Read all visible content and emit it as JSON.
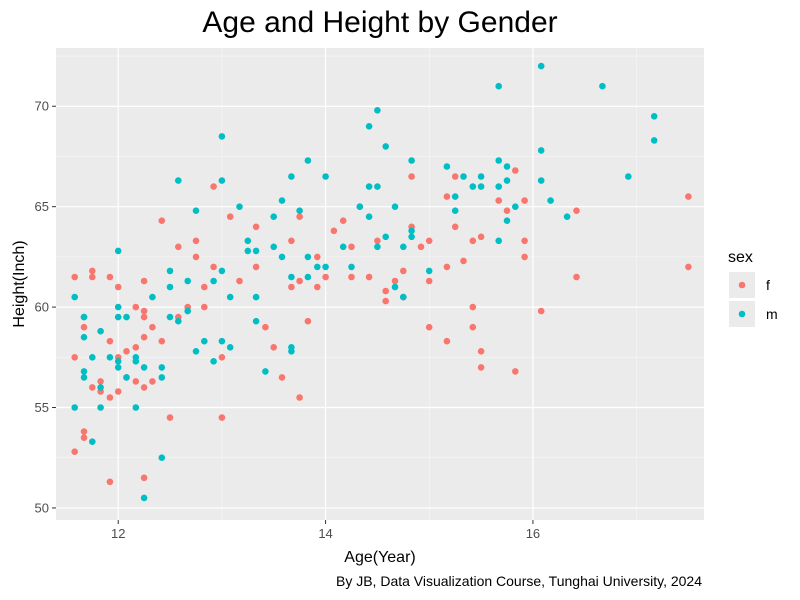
{
  "title": "Age and Height by Gender",
  "caption": "By JB, Data Visualization Course, Tunghai University, 2024",
  "colors": {
    "f": "#F8766D",
    "m": "#00BFC4",
    "panel": "#EBEBEB",
    "grid_major": "#FFFFFF",
    "grid_minor": "#F7F7F7"
  },
  "chart_data": {
    "type": "scatter",
    "title": "Age and Height by Gender",
    "xlabel": "Age(Year)",
    "ylabel": "Height(Inch)",
    "xlim": [
      11.4,
      17.65
    ],
    "ylim": [
      49.4,
      72.9
    ],
    "xticks": [
      12,
      14,
      16
    ],
    "yticks": [
      50,
      55,
      60,
      65,
      70
    ],
    "grid": true,
    "legend": {
      "title": "sex",
      "position": "right",
      "entries": [
        "f",
        "m"
      ]
    },
    "series": [
      {
        "name": "f",
        "color": "#F8766D",
        "points": [
          [
            11.58,
            61.5
          ],
          [
            11.58,
            57.5
          ],
          [
            11.58,
            52.8
          ],
          [
            11.67,
            53.5
          ],
          [
            11.67,
            53.8
          ],
          [
            11.67,
            59.0
          ],
          [
            11.67,
            59.5
          ],
          [
            11.75,
            61.8
          ],
          [
            11.75,
            61.5
          ],
          [
            11.75,
            56.0
          ],
          [
            11.83,
            56.3
          ],
          [
            11.83,
            55.8
          ],
          [
            11.92,
            58.3
          ],
          [
            11.92,
            55.5
          ],
          [
            11.92,
            61.5
          ],
          [
            11.92,
            51.3
          ],
          [
            12.0,
            61.0
          ],
          [
            12.0,
            57.5
          ],
          [
            12.0,
            55.8
          ],
          [
            12.08,
            57.8
          ],
          [
            12.08,
            56.5
          ],
          [
            12.17,
            58.0
          ],
          [
            12.17,
            60.0
          ],
          [
            12.17,
            56.3
          ],
          [
            12.25,
            61.3
          ],
          [
            12.25,
            59.8
          ],
          [
            12.25,
            59.5
          ],
          [
            12.25,
            58.5
          ],
          [
            12.25,
            56.0
          ],
          [
            12.25,
            51.5
          ],
          [
            12.33,
            59.0
          ],
          [
            12.33,
            56.3
          ],
          [
            12.42,
            64.3
          ],
          [
            12.42,
            58.3
          ],
          [
            12.5,
            54.5
          ],
          [
            12.58,
            63.0
          ],
          [
            12.58,
            59.5
          ],
          [
            12.67,
            60.0
          ],
          [
            12.75,
            63.3
          ],
          [
            12.75,
            62.5
          ],
          [
            12.83,
            60.0
          ],
          [
            12.83,
            61.0
          ],
          [
            12.92,
            62.0
          ],
          [
            12.92,
            66.0
          ],
          [
            13.0,
            57.5
          ],
          [
            13.0,
            54.5
          ],
          [
            13.08,
            64.5
          ],
          [
            13.17,
            61.3
          ],
          [
            13.33,
            64.0
          ],
          [
            13.33,
            62.0
          ],
          [
            13.42,
            59.0
          ],
          [
            13.5,
            58.0
          ],
          [
            13.58,
            56.5
          ],
          [
            13.67,
            63.3
          ],
          [
            13.67,
            61.0
          ],
          [
            13.75,
            64.5
          ],
          [
            13.75,
            55.5
          ],
          [
            13.75,
            61.3
          ],
          [
            13.83,
            59.3
          ],
          [
            13.92,
            62.5
          ],
          [
            13.92,
            61.0
          ],
          [
            14.0,
            61.5
          ],
          [
            14.08,
            63.8
          ],
          [
            14.17,
            64.3
          ],
          [
            14.25,
            63.0
          ],
          [
            14.25,
            61.5
          ],
          [
            14.33,
            65.0
          ],
          [
            14.42,
            61.5
          ],
          [
            14.5,
            63.3
          ],
          [
            14.58,
            60.8
          ],
          [
            14.58,
            60.3
          ],
          [
            14.67,
            61.3
          ],
          [
            14.75,
            61.8
          ],
          [
            14.75,
            60.5
          ],
          [
            14.83,
            66.5
          ],
          [
            14.83,
            64.0
          ],
          [
            14.92,
            63.0
          ],
          [
            15.0,
            59.0
          ],
          [
            15.0,
            61.3
          ],
          [
            15.0,
            63.3
          ],
          [
            15.17,
            58.3
          ],
          [
            15.17,
            62.0
          ],
          [
            15.17,
            65.5
          ],
          [
            15.25,
            66.5
          ],
          [
            15.25,
            64.0
          ],
          [
            15.33,
            62.3
          ],
          [
            15.42,
            63.3
          ],
          [
            15.42,
            60.0
          ],
          [
            15.42,
            59.0
          ],
          [
            15.5,
            57.8
          ],
          [
            15.5,
            57.0
          ],
          [
            15.5,
            63.5
          ],
          [
            15.67,
            65.3
          ],
          [
            15.75,
            64.8
          ],
          [
            15.83,
            56.8
          ],
          [
            15.83,
            66.8
          ],
          [
            15.92,
            65.3
          ],
          [
            15.92,
            63.3
          ],
          [
            15.92,
            62.5
          ],
          [
            16.08,
            59.8
          ],
          [
            16.42,
            61.5
          ],
          [
            16.42,
            64.8
          ],
          [
            17.5,
            65.5
          ],
          [
            17.5,
            62.0
          ]
        ]
      },
      {
        "name": "m",
        "color": "#00BFC4",
        "points": [
          [
            11.58,
            60.5
          ],
          [
            11.58,
            55.0
          ],
          [
            11.67,
            59.5
          ],
          [
            11.67,
            58.5
          ],
          [
            11.67,
            56.8
          ],
          [
            11.67,
            56.5
          ],
          [
            11.75,
            57.5
          ],
          [
            11.75,
            53.3
          ],
          [
            11.83,
            58.8
          ],
          [
            11.83,
            56.0
          ],
          [
            11.83,
            55.0
          ],
          [
            11.92,
            57.5
          ],
          [
            12.0,
            62.8
          ],
          [
            12.0,
            60.0
          ],
          [
            12.0,
            59.5
          ],
          [
            12.0,
            57.3
          ],
          [
            12.0,
            57.0
          ],
          [
            12.08,
            56.5
          ],
          [
            12.08,
            59.5
          ],
          [
            12.17,
            55.0
          ],
          [
            12.17,
            57.3
          ],
          [
            12.17,
            57.5
          ],
          [
            12.25,
            57.0
          ],
          [
            12.25,
            50.5
          ],
          [
            12.33,
            60.5
          ],
          [
            12.42,
            57.0
          ],
          [
            12.42,
            56.5
          ],
          [
            12.42,
            52.5
          ],
          [
            12.5,
            61.8
          ],
          [
            12.5,
            61.0
          ],
          [
            12.5,
            59.5
          ],
          [
            12.58,
            66.3
          ],
          [
            12.58,
            59.3
          ],
          [
            12.67,
            61.3
          ],
          [
            12.67,
            59.8
          ],
          [
            12.75,
            64.8
          ],
          [
            12.75,
            57.8
          ],
          [
            12.83,
            58.3
          ],
          [
            12.92,
            61.3
          ],
          [
            12.92,
            57.3
          ],
          [
            13.0,
            68.5
          ],
          [
            13.0,
            66.3
          ],
          [
            13.0,
            61.8
          ],
          [
            13.0,
            58.3
          ],
          [
            13.08,
            60.5
          ],
          [
            13.08,
            58.0
          ],
          [
            13.17,
            65.0
          ],
          [
            13.25,
            63.3
          ],
          [
            13.25,
            62.8
          ],
          [
            13.33,
            62.8
          ],
          [
            13.33,
            60.5
          ],
          [
            13.33,
            59.3
          ],
          [
            13.42,
            56.8
          ],
          [
            13.5,
            64.5
          ],
          [
            13.5,
            63.0
          ],
          [
            13.58,
            65.3
          ],
          [
            13.58,
            62.5
          ],
          [
            13.67,
            66.5
          ],
          [
            13.67,
            61.5
          ],
          [
            13.67,
            58.0
          ],
          [
            13.67,
            57.8
          ],
          [
            13.75,
            64.8
          ],
          [
            13.83,
            67.3
          ],
          [
            13.83,
            62.5
          ],
          [
            13.83,
            61.5
          ],
          [
            13.92,
            62.0
          ],
          [
            14.0,
            66.5
          ],
          [
            14.0,
            62.0
          ],
          [
            14.17,
            63.0
          ],
          [
            14.25,
            62.0
          ],
          [
            14.33,
            65.0
          ],
          [
            14.42,
            69.0
          ],
          [
            14.42,
            66.0
          ],
          [
            14.42,
            64.5
          ],
          [
            14.5,
            69.8
          ],
          [
            14.5,
            66.0
          ],
          [
            14.5,
            63.0
          ],
          [
            14.58,
            68.0
          ],
          [
            14.58,
            63.5
          ],
          [
            14.67,
            65.0
          ],
          [
            14.67,
            61.0
          ],
          [
            14.75,
            63.0
          ],
          [
            14.75,
            60.5
          ],
          [
            14.83,
            67.3
          ],
          [
            14.83,
            63.5
          ],
          [
            14.83,
            63.8
          ],
          [
            15.0,
            61.8
          ],
          [
            15.17,
            67.0
          ],
          [
            15.25,
            65.5
          ],
          [
            15.25,
            64.8
          ],
          [
            15.33,
            66.5
          ],
          [
            15.42,
            66.0
          ],
          [
            15.5,
            66.5
          ],
          [
            15.5,
            66.0
          ],
          [
            15.67,
            67.3
          ],
          [
            15.67,
            71.0
          ],
          [
            15.67,
            66.0
          ],
          [
            15.67,
            63.3
          ],
          [
            15.75,
            67.0
          ],
          [
            15.75,
            66.3
          ],
          [
            15.75,
            64.3
          ],
          [
            15.83,
            65.0
          ],
          [
            16.08,
            72.0
          ],
          [
            16.08,
            67.8
          ],
          [
            16.08,
            66.3
          ],
          [
            16.17,
            65.3
          ],
          [
            16.33,
            64.5
          ],
          [
            16.67,
            71.0
          ],
          [
            16.92,
            66.5
          ],
          [
            17.17,
            69.5
          ],
          [
            17.17,
            68.3
          ]
        ]
      }
    ]
  }
}
